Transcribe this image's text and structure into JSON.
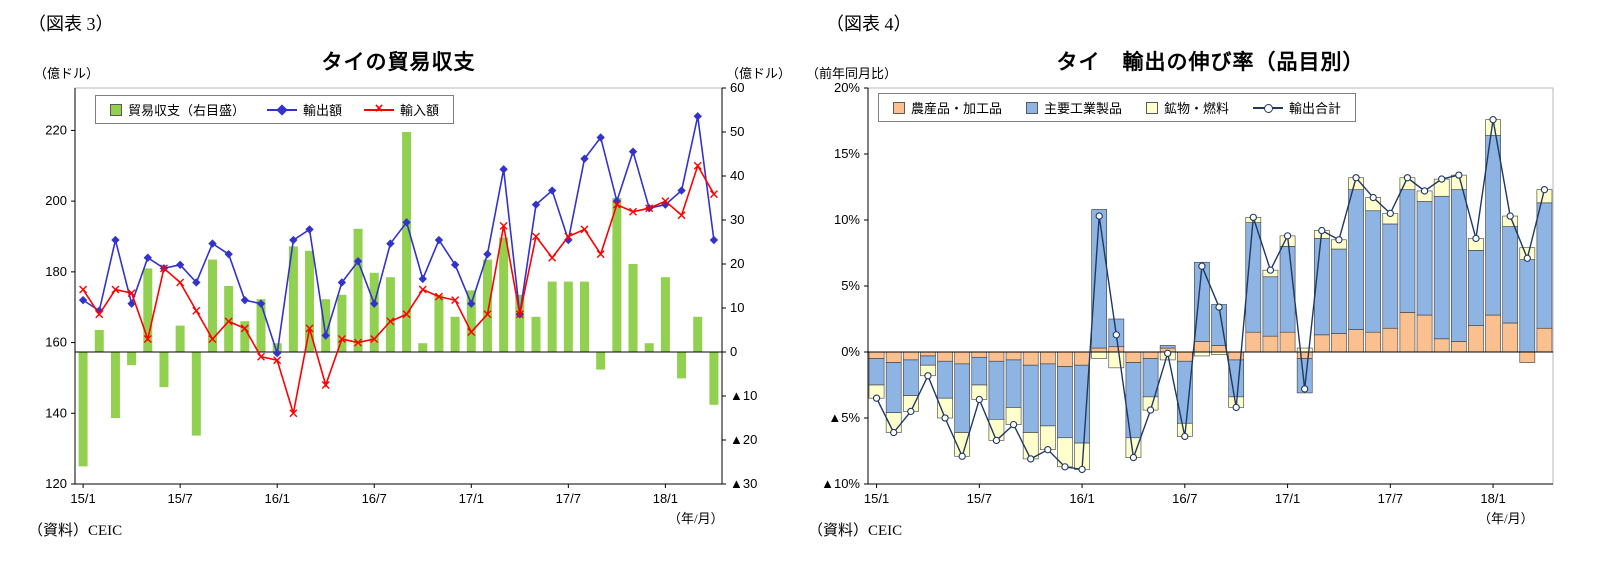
{
  "fig3": {
    "caption": "（図表 3）",
    "title": "タイの貿易収支",
    "unit_left": "（億ドル）",
    "unit_right": "（億ドル）",
    "axis_note": "（年/月）",
    "source": "（資料）CEIC",
    "legend": [
      {
        "label": "貿易収支（右目盛）"
      },
      {
        "label": "輸出額"
      },
      {
        "label": "輸入額",
        "marker": "×"
      }
    ]
  },
  "fig4": {
    "caption": "（図表 4）",
    "title": "タイ　輸出の伸び率（品目別）",
    "unit": "（前年同月比）",
    "axis_note": "（年/月）",
    "source": "（資料）CEIC",
    "legend": [
      {
        "label": "農産品・加工品"
      },
      {
        "label": "主要工業製品"
      },
      {
        "label": "鉱物・燃料"
      },
      {
        "label": "輸出合計"
      }
    ]
  },
  "chart_data": [
    {
      "id": "thailand-trade-balance",
      "type": "bar+line",
      "title": "タイの貿易収支",
      "unit": "億ドル",
      "x": [
        "15/1",
        "15/2",
        "15/3",
        "15/4",
        "15/5",
        "15/6",
        "15/7",
        "15/8",
        "15/9",
        "15/10",
        "15/11",
        "15/12",
        "16/1",
        "16/2",
        "16/3",
        "16/4",
        "16/5",
        "16/6",
        "16/7",
        "16/8",
        "16/9",
        "16/10",
        "16/11",
        "16/12",
        "17/1",
        "17/2",
        "17/3",
        "17/4",
        "17/5",
        "17/6",
        "17/7",
        "17/8",
        "17/9",
        "17/10",
        "17/11",
        "17/12",
        "18/1",
        "18/2",
        "18/3",
        "18/4"
      ],
      "x_ticks": [
        "15/1",
        "15/7",
        "16/1",
        "16/7",
        "17/1",
        "17/7",
        "18/1"
      ],
      "left_axis": {
        "min": 120,
        "max": 232,
        "ticks": [
          120,
          140,
          160,
          180,
          200,
          220
        ],
        "tick_labels": [
          "120",
          "140",
          "160",
          "180",
          "200",
          "220"
        ]
      },
      "right_axis": {
        "min": -30,
        "max": 60,
        "ticks": [
          -30,
          -20,
          -10,
          0,
          10,
          20,
          30,
          40,
          50,
          60
        ],
        "tick_labels": [
          "▲30",
          "▲20",
          "▲10",
          "0",
          "10",
          "20",
          "30",
          "40",
          "50",
          "60"
        ]
      },
      "series": [
        {
          "name": "貿易収支（右目盛）",
          "type": "bar",
          "axis": "right",
          "color": "#92d050",
          "values": [
            -26,
            5,
            -15,
            -3,
            19,
            -8,
            6,
            -19,
            21,
            15,
            7,
            12,
            2,
            24,
            23,
            12,
            13,
            28,
            18,
            17,
            50,
            2,
            13,
            8,
            14,
            21,
            26,
            13,
            8,
            16,
            16,
            16,
            -4,
            35,
            20,
            2,
            17,
            -6,
            8,
            -12
          ]
        },
        {
          "name": "輸出額",
          "type": "line",
          "marker": "diamond",
          "axis": "left",
          "color": "#3333cc",
          "values": [
            172,
            169,
            189,
            171,
            184,
            181,
            182,
            177,
            188,
            185,
            172,
            171,
            157,
            189,
            192,
            162,
            177,
            183,
            171,
            188,
            194,
            178,
            189,
            182,
            171,
            185,
            209,
            168,
            199,
            203,
            189,
            212,
            218,
            200,
            214,
            198,
            199,
            203,
            224,
            189
          ]
        },
        {
          "name": "輸入額",
          "type": "line",
          "marker": "x",
          "axis": "left",
          "color": "#ff0000",
          "values": [
            175,
            168,
            175,
            174,
            161,
            181,
            177,
            169,
            161,
            166,
            164,
            156,
            155,
            140,
            164,
            148,
            161,
            160,
            161,
            166,
            168,
            175,
            173,
            172,
            163,
            168,
            193,
            168,
            190,
            184,
            190,
            192,
            185,
            199,
            197,
            198,
            200,
            196,
            210,
            202
          ]
        }
      ]
    },
    {
      "id": "thailand-export-growth-by-category",
      "type": "stacked-bar+line",
      "title": "タイ　輸出の伸び率（品目別）",
      "unit": "前年同月比",
      "x": [
        "15/1",
        "15/2",
        "15/3",
        "15/4",
        "15/5",
        "15/6",
        "15/7",
        "15/8",
        "15/9",
        "15/10",
        "15/11",
        "15/12",
        "16/1",
        "16/2",
        "16/3",
        "16/4",
        "16/5",
        "16/6",
        "16/7",
        "16/8",
        "16/9",
        "16/10",
        "16/11",
        "16/12",
        "17/1",
        "17/2",
        "17/3",
        "17/4",
        "17/5",
        "17/6",
        "17/7",
        "17/8",
        "17/9",
        "17/10",
        "17/11",
        "17/12",
        "18/1",
        "18/2",
        "18/3",
        "18/4"
      ],
      "x_ticks": [
        "15/1",
        "15/7",
        "16/1",
        "16/7",
        "17/1",
        "17/7",
        "18/1"
      ],
      "y_axis": {
        "min": -10,
        "max": 20,
        "ticks": [
          -10,
          -5,
          0,
          5,
          10,
          15,
          20
        ],
        "tick_labels": [
          "▲10%",
          "▲5%",
          "0%",
          "5%",
          "10%",
          "15%",
          "20%"
        ]
      },
      "series": [
        {
          "name": "農産品・加工品",
          "type": "stacked-bar",
          "color": "#fac090",
          "values": [
            -0.5,
            -0.8,
            -0.6,
            -0.3,
            -0.7,
            -0.9,
            -0.4,
            -0.7,
            -0.6,
            -1.0,
            -0.9,
            -1.1,
            -1.0,
            0.3,
            0.4,
            -0.8,
            -0.5,
            0.3,
            -0.7,
            0.8,
            0.5,
            -0.6,
            1.5,
            1.2,
            1.5,
            -0.5,
            1.3,
            1.4,
            1.7,
            1.5,
            1.8,
            3.0,
            2.8,
            1.0,
            0.8,
            2.0,
            2.8,
            2.2,
            -0.8,
            1.8
          ]
        },
        {
          "name": "主要工業製品",
          "type": "stacked-bar",
          "color": "#8eb4e3",
          "values": [
            -2.0,
            -3.8,
            -2.7,
            -0.7,
            -2.8,
            -5.2,
            -2.1,
            -4.4,
            -3.6,
            -5.1,
            -4.7,
            -5.4,
            -5.9,
            10.5,
            2.1,
            -5.7,
            -2.9,
            0.2,
            -4.7,
            6.0,
            3.1,
            -2.8,
            8.3,
            4.5,
            6.5,
            -2.6,
            7.3,
            6.4,
            10.6,
            9.2,
            7.9,
            9.3,
            8.6,
            10.8,
            11.5,
            5.7,
            13.6,
            7.3,
            7.0,
            9.5
          ]
        },
        {
          "name": "鉱物・燃料",
          "type": "stacked-bar",
          "color": "#ffffcc",
          "values": [
            -1.0,
            -1.5,
            -1.2,
            -0.8,
            -1.5,
            -1.8,
            -1.1,
            -1.6,
            -1.3,
            -2.0,
            -1.8,
            -2.2,
            -2.0,
            -0.5,
            -1.2,
            -1.5,
            -1.0,
            -0.6,
            -1.0,
            -0.3,
            -0.2,
            -0.8,
            0.4,
            0.5,
            0.8,
            0.3,
            0.6,
            0.7,
            0.9,
            1.0,
            0.8,
            0.9,
            0.8,
            1.3,
            1.1,
            0.9,
            1.2,
            0.8,
            0.9,
            1.0
          ]
        },
        {
          "name": "輸出合計",
          "type": "line",
          "marker": "circle",
          "color": "#1f3864",
          "values": [
            -3.5,
            -6.1,
            -4.5,
            -1.8,
            -5.0,
            -7.9,
            -3.6,
            -6.7,
            -5.5,
            -8.1,
            -7.4,
            -8.7,
            -8.9,
            10.3,
            1.3,
            -8.0,
            -4.4,
            -0.1,
            -6.4,
            6.5,
            3.4,
            -4.2,
            10.2,
            6.2,
            8.8,
            -2.8,
            9.2,
            8.5,
            13.2,
            11.7,
            10.5,
            13.2,
            12.2,
            13.1,
            13.4,
            8.6,
            17.6,
            10.3,
            7.1,
            12.3
          ]
        }
      ]
    }
  ]
}
